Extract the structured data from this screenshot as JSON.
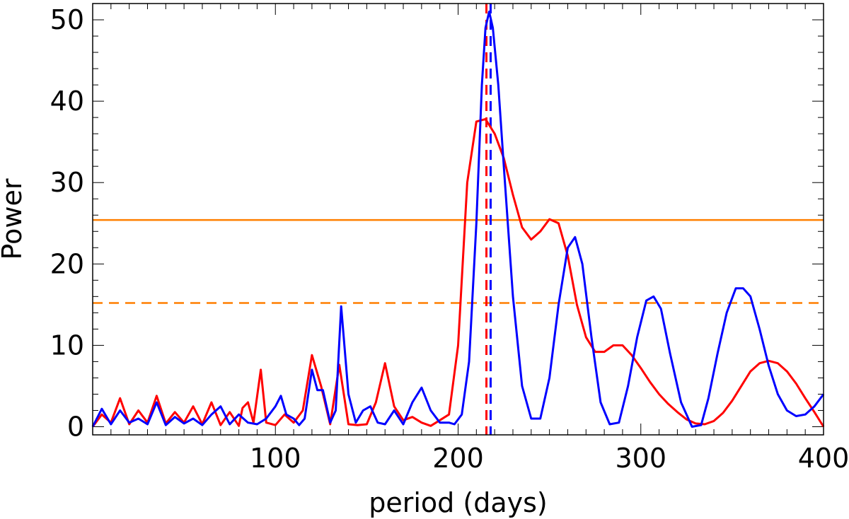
{
  "chart_data": {
    "type": "line",
    "title": "",
    "xlabel": "period (days)",
    "ylabel": "Power",
    "xlim": [
      0,
      400
    ],
    "ylim": [
      -1,
      52
    ],
    "xticks": [
      100,
      200,
      300,
      400
    ],
    "xtick_labels": [
      "100",
      "200",
      "300",
      "400"
    ],
    "yticks": [
      0,
      10,
      20,
      30,
      40,
      50
    ],
    "ytick_labels": [
      "0",
      "10",
      "20",
      "30",
      "40",
      "50"
    ],
    "grid": false,
    "legend": "none",
    "series": [
      {
        "color": "#ff0000",
        "style": "solid",
        "points": [
          [
            0,
            0
          ],
          [
            5,
            1.5
          ],
          [
            10,
            0.5
          ],
          [
            15,
            3.5
          ],
          [
            20,
            0.3
          ],
          [
            25,
            2
          ],
          [
            30,
            0.5
          ],
          [
            35,
            3.8
          ],
          [
            40,
            0.4
          ],
          [
            45,
            1.8
          ],
          [
            50,
            0.5
          ],
          [
            55,
            2.5
          ],
          [
            60,
            0.3
          ],
          [
            65,
            3
          ],
          [
            70,
            0.2
          ],
          [
            75,
            1.8
          ],
          [
            80,
            0.1
          ],
          [
            82,
            2.3
          ],
          [
            85,
            3
          ],
          [
            88,
            0.5
          ],
          [
            92,
            7
          ],
          [
            95,
            0.5
          ],
          [
            100,
            0.2
          ],
          [
            105,
            1.5
          ],
          [
            110,
            0.5
          ],
          [
            115,
            2
          ],
          [
            120,
            8.8
          ],
          [
            125,
            5
          ],
          [
            130,
            0.3
          ],
          [
            135,
            7.6
          ],
          [
            140,
            0.3
          ],
          [
            145,
            0.2
          ],
          [
            150,
            0.3
          ],
          [
            155,
            3
          ],
          [
            160,
            7.8
          ],
          [
            165,
            2.5
          ],
          [
            170,
            0.8
          ],
          [
            175,
            1.2
          ],
          [
            180,
            0.5
          ],
          [
            185,
            0.1
          ],
          [
            190,
            0.8
          ],
          [
            195,
            1.5
          ],
          [
            200,
            10
          ],
          [
            205,
            30
          ],
          [
            210,
            37.5
          ],
          [
            215,
            37.8
          ],
          [
            220,
            36
          ],
          [
            225,
            33
          ],
          [
            230,
            28.5
          ],
          [
            235,
            24.5
          ],
          [
            240,
            23
          ],
          [
            245,
            24
          ],
          [
            250,
            25.5
          ],
          [
            255,
            25
          ],
          [
            260,
            21
          ],
          [
            265,
            15
          ],
          [
            270,
            11
          ],
          [
            275,
            9.2
          ],
          [
            280,
            9.2
          ],
          [
            285,
            10
          ],
          [
            290,
            10
          ],
          [
            295,
            8.8
          ],
          [
            300,
            7.2
          ],
          [
            305,
            5.5
          ],
          [
            310,
            4
          ],
          [
            315,
            2.8
          ],
          [
            320,
            1.8
          ],
          [
            325,
            0.9
          ],
          [
            330,
            0.4
          ],
          [
            335,
            0.3
          ],
          [
            340,
            0.7
          ],
          [
            345,
            1.7
          ],
          [
            350,
            3.2
          ],
          [
            355,
            5
          ],
          [
            360,
            6.8
          ],
          [
            365,
            7.8
          ],
          [
            370,
            8.1
          ],
          [
            375,
            7.8
          ],
          [
            380,
            6.8
          ],
          [
            385,
            5.3
          ],
          [
            390,
            3.5
          ],
          [
            395,
            1.8
          ],
          [
            400,
            0
          ]
        ]
      },
      {
        "color": "#0000ff",
        "style": "solid",
        "points": [
          [
            0,
            0
          ],
          [
            5,
            2.2
          ],
          [
            10,
            0.3
          ],
          [
            15,
            2
          ],
          [
            20,
            0.5
          ],
          [
            25,
            1
          ],
          [
            30,
            0.3
          ],
          [
            35,
            3
          ],
          [
            40,
            0.2
          ],
          [
            45,
            1.2
          ],
          [
            50,
            0.4
          ],
          [
            55,
            1
          ],
          [
            60,
            0.2
          ],
          [
            65,
            1.5
          ],
          [
            70,
            2.5
          ],
          [
            75,
            0.3
          ],
          [
            80,
            1.5
          ],
          [
            85,
            0.5
          ],
          [
            90,
            0.3
          ],
          [
            95,
            1
          ],
          [
            100,
            2.5
          ],
          [
            103,
            3.8
          ],
          [
            106,
            1.5
          ],
          [
            110,
            1
          ],
          [
            113,
            0.2
          ],
          [
            116,
            1
          ],
          [
            120,
            7
          ],
          [
            123,
            4.5
          ],
          [
            126,
            4.5
          ],
          [
            130,
            0.5
          ],
          [
            133,
            2
          ],
          [
            136,
            14.8
          ],
          [
            140,
            4
          ],
          [
            144,
            0.5
          ],
          [
            148,
            2
          ],
          [
            152,
            2.5
          ],
          [
            156,
            0.5
          ],
          [
            160,
            0.3
          ],
          [
            165,
            2
          ],
          [
            170,
            0.3
          ],
          [
            175,
            3
          ],
          [
            180,
            4.8
          ],
          [
            185,
            2
          ],
          [
            190,
            0.5
          ],
          [
            195,
            0.5
          ],
          [
            198,
            0.3
          ],
          [
            202,
            1.5
          ],
          [
            206,
            8
          ],
          [
            210,
            25
          ],
          [
            213,
            42
          ],
          [
            215,
            49
          ],
          [
            217,
            51
          ],
          [
            219,
            49
          ],
          [
            222,
            42
          ],
          [
            225,
            32
          ],
          [
            230,
            16
          ],
          [
            235,
            5
          ],
          [
            240,
            1
          ],
          [
            245,
            1
          ],
          [
            250,
            6
          ],
          [
            255,
            15
          ],
          [
            260,
            22
          ],
          [
            264,
            23.3
          ],
          [
            268,
            20
          ],
          [
            273,
            11
          ],
          [
            278,
            3
          ],
          [
            283,
            0.3
          ],
          [
            288,
            0.5
          ],
          [
            293,
            5
          ],
          [
            298,
            11
          ],
          [
            303,
            15.5
          ],
          [
            307,
            16
          ],
          [
            311,
            14.5
          ],
          [
            316,
            9
          ],
          [
            322,
            3
          ],
          [
            328,
            0
          ],
          [
            333,
            0.2
          ],
          [
            337,
            3.5
          ],
          [
            342,
            9
          ],
          [
            347,
            14
          ],
          [
            352,
            17
          ],
          [
            356,
            17
          ],
          [
            360,
            16
          ],
          [
            365,
            12
          ],
          [
            370,
            7.5
          ],
          [
            375,
            4
          ],
          [
            380,
            2
          ],
          [
            385,
            1.3
          ],
          [
            390,
            1.5
          ],
          [
            395,
            2.5
          ],
          [
            400,
            4
          ]
        ]
      }
    ],
    "hlines": [
      {
        "y": 25.4,
        "color": "#ff7f00",
        "style": "solid"
      },
      {
        "y": 15.2,
        "color": "#ff7f00",
        "style": "dashed"
      }
    ],
    "vlines": [
      {
        "x": 215.5,
        "color": "#ff0000",
        "style": "dashed"
      },
      {
        "x": 217.8,
        "color": "#0000ff",
        "style": "dashed"
      }
    ]
  }
}
